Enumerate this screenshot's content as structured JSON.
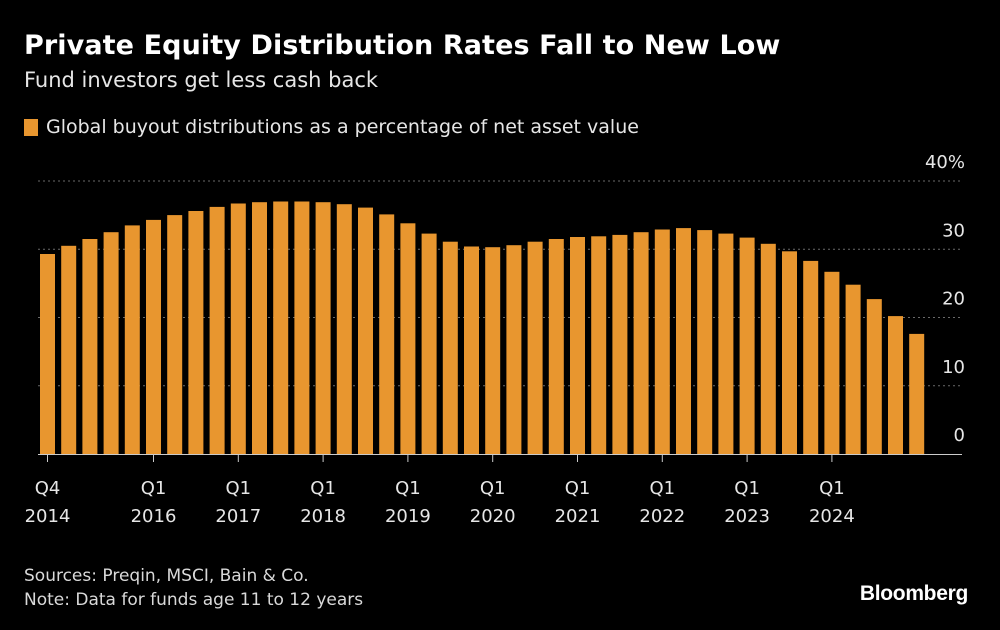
{
  "header": {
    "title": "Private Equity Distribution Rates Fall to New Low",
    "subtitle": "Fund investors get less cash back"
  },
  "legend": {
    "label": "Global buyout distributions as a percentage of net asset value"
  },
  "footer": {
    "sources": "Sources: Preqin, MSCI, Bain & Co.",
    "note": "Note: Data for funds age 11 to 12 years",
    "brand": "Bloomberg"
  },
  "colors": {
    "bar": "#e8962f",
    "background": "#000000",
    "grid": "#6a6a6a",
    "text": "#ffffff"
  },
  "chart_data": {
    "type": "bar",
    "title": "Private Equity Distribution Rates Fall to New Low",
    "subtitle": "Fund investors get less cash back",
    "ylabel": "",
    "xlabel": "",
    "ylim": [
      0,
      40
    ],
    "y_ticks": [
      {
        "value": 0,
        "label": "0"
      },
      {
        "value": 10,
        "label": "10"
      },
      {
        "value": 20,
        "label": "20"
      },
      {
        "value": 30,
        "label": "30"
      },
      {
        "value": 40,
        "label": "40%"
      }
    ],
    "grid": true,
    "series": [
      {
        "name": "Global buyout distributions as a percentage of net asset value",
        "categories": [
          "Q4 2014",
          "Q1 2015",
          "Q2 2015",
          "Q3 2015",
          "Q4 2015",
          "Q1 2016",
          "Q2 2016",
          "Q3 2016",
          "Q4 2016",
          "Q1 2017",
          "Q2 2017",
          "Q3 2017",
          "Q4 2017",
          "Q1 2018",
          "Q2 2018",
          "Q3 2018",
          "Q4 2018",
          "Q1 2019",
          "Q2 2019",
          "Q3 2019",
          "Q4 2019",
          "Q1 2020",
          "Q2 2020",
          "Q3 2020",
          "Q4 2020",
          "Q1 2021",
          "Q2 2021",
          "Q3 2021",
          "Q4 2021",
          "Q1 2022",
          "Q2 2022",
          "Q3 2022",
          "Q4 2022",
          "Q1 2023",
          "Q2 2023",
          "Q3 2023",
          "Q4 2023",
          "Q1 2024",
          "Q2 2024",
          "Q3 2024",
          "Q4 2024",
          "Q1 2025"
        ],
        "values": [
          29.3,
          30.5,
          31.5,
          32.5,
          33.5,
          34.3,
          35.0,
          35.6,
          36.2,
          36.7,
          36.9,
          37.0,
          37.0,
          36.9,
          36.6,
          36.1,
          35.1,
          33.8,
          32.3,
          31.1,
          30.4,
          30.3,
          30.6,
          31.1,
          31.5,
          31.8,
          31.9,
          32.1,
          32.5,
          32.9,
          33.1,
          32.8,
          32.3,
          31.7,
          30.8,
          29.7,
          28.3,
          26.7,
          24.8,
          22.7,
          20.2,
          17.6
        ]
      }
    ],
    "x_tick_labels": [
      {
        "index": 0,
        "line1": "Q4",
        "line2": "2014"
      },
      {
        "index": 5,
        "line1": "Q1",
        "line2": "2016"
      },
      {
        "index": 9,
        "line1": "Q1",
        "line2": "2017"
      },
      {
        "index": 13,
        "line1": "Q1",
        "line2": "2018"
      },
      {
        "index": 17,
        "line1": "Q1",
        "line2": "2019"
      },
      {
        "index": 21,
        "line1": "Q1",
        "line2": "2020"
      },
      {
        "index": 25,
        "line1": "Q1",
        "line2": "2021"
      },
      {
        "index": 29,
        "line1": "Q1",
        "line2": "2022"
      },
      {
        "index": 33,
        "line1": "Q1",
        "line2": "2023"
      },
      {
        "index": 37,
        "line1": "Q1",
        "line2": "2024"
      }
    ]
  }
}
